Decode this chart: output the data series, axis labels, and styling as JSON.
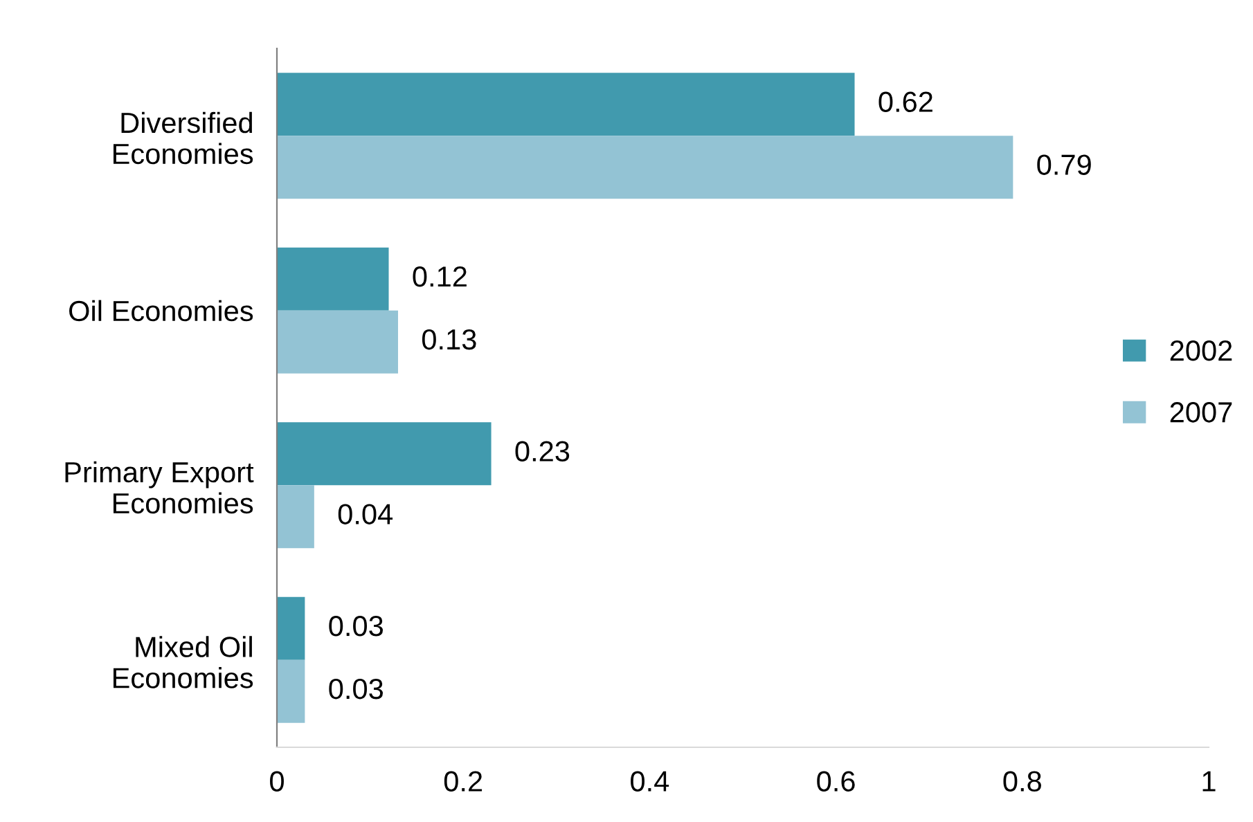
{
  "chart_data": {
    "type": "bar",
    "orientation": "horizontal",
    "categories": [
      "Diversified\nEconomies",
      "Oil Economies",
      "Primary Export\nEconomies",
      "Mixed Oil\nEconomies"
    ],
    "series": [
      {
        "name": "2002",
        "color": "#419aae",
        "values": [
          0.62,
          0.12,
          0.23,
          0.03
        ]
      },
      {
        "name": "2007",
        "color": "#93c3d4",
        "values": [
          0.79,
          0.13,
          0.04,
          0.03
        ]
      }
    ],
    "xlim": [
      0,
      1
    ],
    "xticks": [
      0,
      0.2,
      0.4,
      0.6,
      0.8,
      1
    ],
    "data_labels": true,
    "legend": "right",
    "grid": false
  }
}
